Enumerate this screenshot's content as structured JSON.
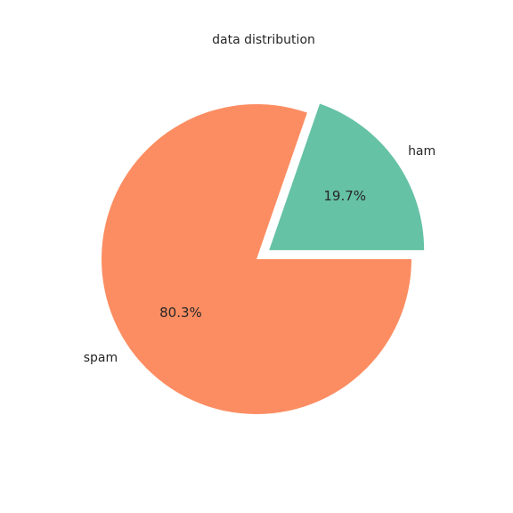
{
  "chart_data": {
    "type": "pie",
    "title": "data distribution",
    "categories": [
      "ham",
      "spam"
    ],
    "values": [
      19.7,
      80.3
    ],
    "percent_labels": [
      "19.7%",
      "80.3%"
    ],
    "colors": [
      "#66c2a5",
      "#fc8d62"
    ],
    "exploded": [
      "ham"
    ],
    "legend": "none"
  }
}
